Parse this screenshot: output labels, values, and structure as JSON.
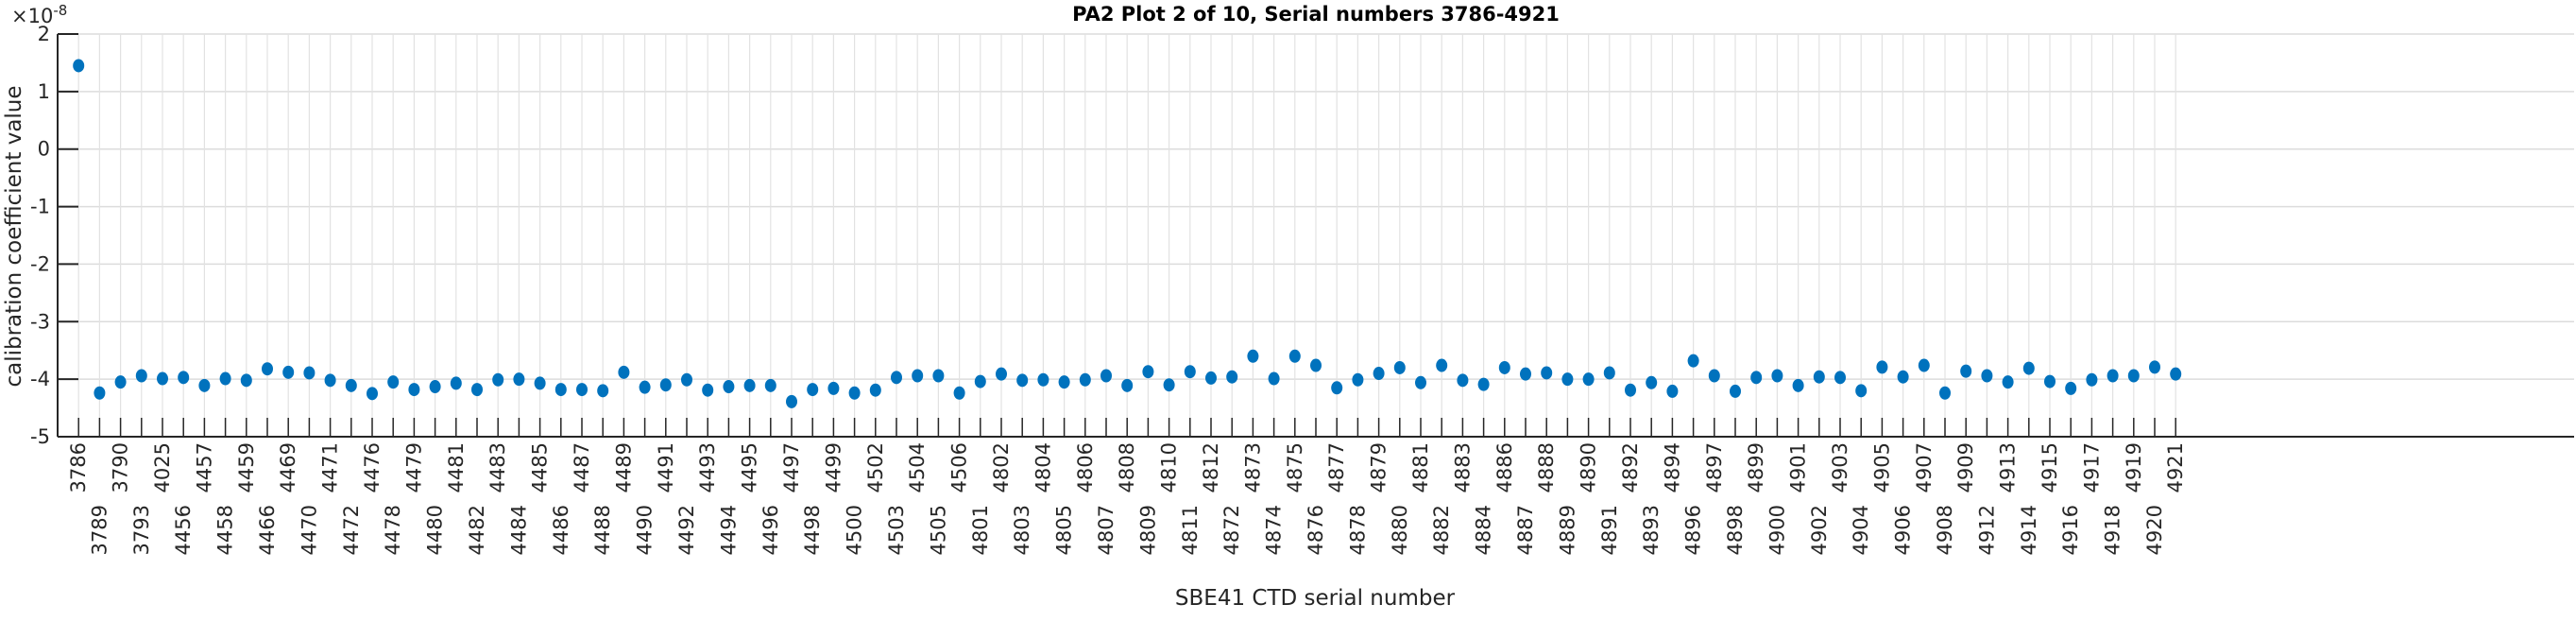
{
  "chart_data": {
    "type": "scatter",
    "title": "PA2 Plot 2 of 10, Serial numbers 3786-4921",
    "xlabel": "SBE41 CTD serial number",
    "ylabel": "calibration coefficient value",
    "y_exponent_label": "×10",
    "y_exponent": "-8",
    "ylim": [
      -5,
      2
    ],
    "xlim_index": [
      0,
      120
    ],
    "yticks": [
      -5,
      -4,
      -3,
      -2,
      -1,
      0,
      1,
      2
    ],
    "grid": true,
    "marker_color": "#0072BD",
    "categories": [
      "3786",
      "3789",
      "3790",
      "3793",
      "4025",
      "4456",
      "4457",
      "4458",
      "4459",
      "4466",
      "4469",
      "4470",
      "4471",
      "4472",
      "4476",
      "4478",
      "4479",
      "4480",
      "4481",
      "4482",
      "4483",
      "4484",
      "4485",
      "4486",
      "4487",
      "4488",
      "4489",
      "4490",
      "4491",
      "4492",
      "4493",
      "4494",
      "4495",
      "4496",
      "4497",
      "4498",
      "4499",
      "4500",
      "4502",
      "4503",
      "4504",
      "4505",
      "4506",
      "4801",
      "4802",
      "4803",
      "4804",
      "4805",
      "4806",
      "4807",
      "4808",
      "4809",
      "4810",
      "4811",
      "4812",
      "4872",
      "4873",
      "4874",
      "4875",
      "4876",
      "4877",
      "4878",
      "4879",
      "4880",
      "4881",
      "4882",
      "4883",
      "4884",
      "4886",
      "4887",
      "4888",
      "4889",
      "4890",
      "4891",
      "4892",
      "4893",
      "4894",
      "4896",
      "4897",
      "4898",
      "4899",
      "4900",
      "4901",
      "4902",
      "4903",
      "4904",
      "4905",
      "4906",
      "4907",
      "4908",
      "4909",
      "4912",
      "4913",
      "4914",
      "4915",
      "4916",
      "4917",
      "4918",
      "4919",
      "4920",
      "4921"
    ],
    "values": [
      1.45,
      -4.24,
      -4.05,
      -3.94,
      -3.99,
      -3.97,
      -4.11,
      -3.99,
      -4.02,
      -3.82,
      -3.88,
      -3.89,
      -4.02,
      -4.11,
      -4.25,
      -4.05,
      -4.18,
      -4.13,
      -4.07,
      -4.18,
      -4.01,
      -4.0,
      -4.07,
      -4.18,
      -4.18,
      -4.2,
      -3.88,
      -4.14,
      -4.1,
      -4.01,
      -4.19,
      -4.13,
      -4.11,
      -4.11,
      -4.39,
      -4.18,
      -4.16,
      -4.24,
      -4.19,
      -3.97,
      -3.94,
      -3.94,
      -4.24,
      -4.04,
      -3.91,
      -4.02,
      -4.01,
      -4.05,
      -4.01,
      -3.94,
      -4.11,
      -3.87,
      -4.1,
      -3.87,
      -3.98,
      -3.96,
      -3.6,
      -3.99,
      -3.6,
      -3.76,
      -4.15,
      -4.01,
      -3.9,
      -3.8,
      -4.06,
      -3.76,
      -4.02,
      -4.09,
      -3.8,
      -3.91,
      -3.89,
      -4.0,
      -4.0,
      -3.89,
      -4.19,
      -4.06,
      -4.21,
      -3.68,
      -3.94,
      -4.21,
      -3.97,
      -3.94,
      -4.11,
      -3.96,
      -3.97,
      -4.2,
      -3.79,
      -3.96,
      -3.76,
      -4.24,
      -3.86,
      -3.94,
      -4.05,
      -3.81,
      -4.04,
      -4.16,
      -4.01,
      -3.94,
      -3.94,
      -3.79,
      -3.91
    ]
  }
}
